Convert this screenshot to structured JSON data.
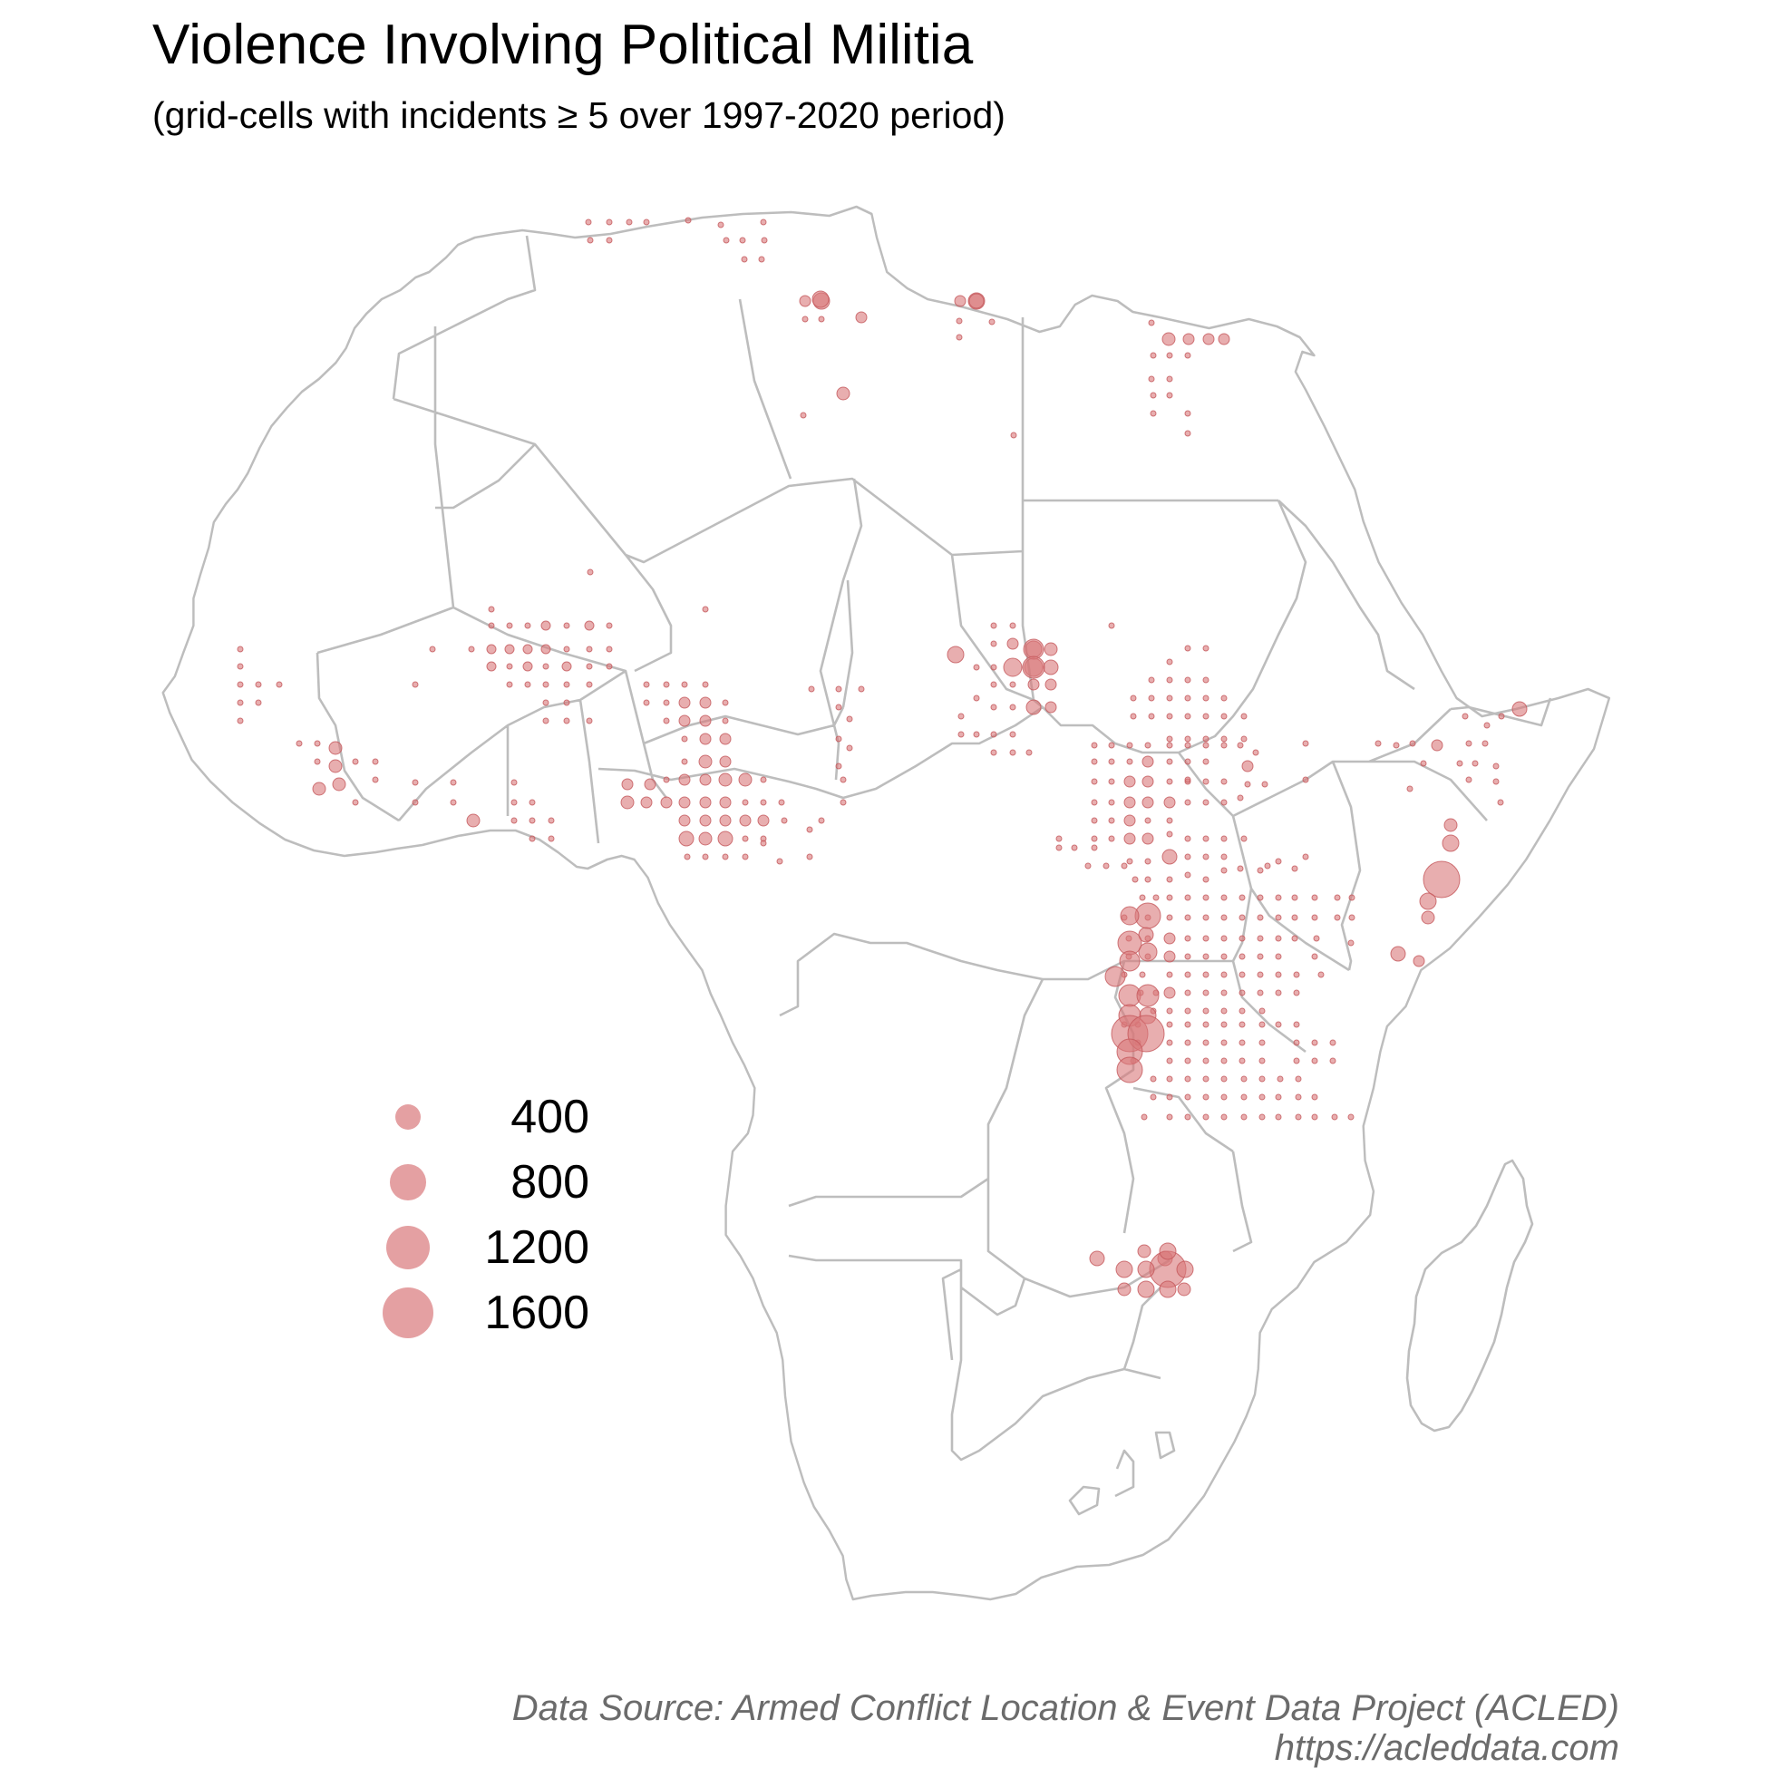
{
  "title": "Violence Involving Political Militia",
  "subtitle": "(grid-cells with incidents ≥ 5 over 1997-2020 period)",
  "caption": {
    "source": "Data Source: Armed Conflict Location & Event Data Project (ACLED)",
    "url": "https://acleddata.com"
  },
  "colors": {
    "point_fill": "#d9787a",
    "point_stroke": "#c4585b",
    "border": "#bdbdbd"
  },
  "legend": {
    "items": [
      {
        "label": "400",
        "value": 400
      },
      {
        "label": "800",
        "value": 800
      },
      {
        "label": "1200",
        "value": 1200
      },
      {
        "label": "1600",
        "value": 1600
      }
    ]
  }
}
